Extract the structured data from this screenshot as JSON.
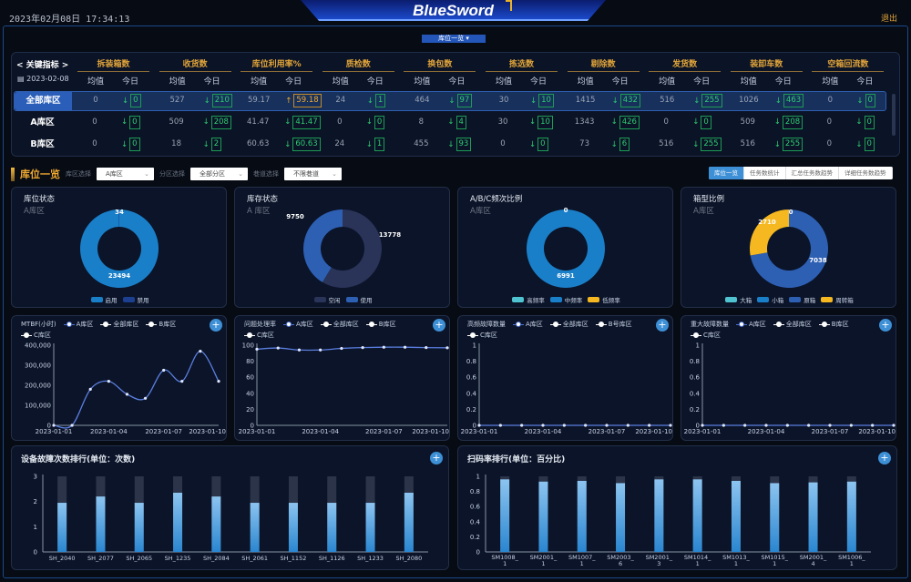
{
  "header": {
    "datetime": "2023年02月08日 17:34:13",
    "logo": "BlueSword",
    "logout": "退出",
    "view_select": "库位一览 ▾"
  },
  "kpi": {
    "title": "< 关键指标 >",
    "date": "▤ 2023-02-08",
    "avg_label": "均值",
    "today_label": "今日",
    "metrics": [
      "拆装箱数",
      "收货数",
      "库位利用率%",
      "质检数",
      "换包数",
      "拣选数",
      "剔除数",
      "发货数",
      "装卸车数",
      "空箱回流数"
    ],
    "rows": [
      {
        "name": "全部库区",
        "selected": true,
        "cells": [
          [
            "0",
            "0",
            "down"
          ],
          [
            "527",
            "210",
            "down"
          ],
          [
            "59.17",
            "59.18",
            "up"
          ],
          [
            "24",
            "1",
            "down"
          ],
          [
            "464",
            "97",
            "down"
          ],
          [
            "30",
            "10",
            "down"
          ],
          [
            "1415",
            "432",
            "down"
          ],
          [
            "516",
            "255",
            "down"
          ],
          [
            "1026",
            "463",
            "down"
          ],
          [
            "0",
            "0",
            "down"
          ]
        ]
      },
      {
        "name": "A库区",
        "selected": false,
        "cells": [
          [
            "0",
            "0",
            "down"
          ],
          [
            "509",
            "208",
            "down"
          ],
          [
            "41.47",
            "41.47",
            "down"
          ],
          [
            "0",
            "0",
            "down"
          ],
          [
            "8",
            "4",
            "down"
          ],
          [
            "30",
            "10",
            "down"
          ],
          [
            "1343",
            "426",
            "down"
          ],
          [
            "0",
            "0",
            "down"
          ],
          [
            "509",
            "208",
            "down"
          ],
          [
            "0",
            "0",
            "down"
          ]
        ]
      },
      {
        "name": "B库区",
        "selected": false,
        "cells": [
          [
            "0",
            "0",
            "down"
          ],
          [
            "18",
            "2",
            "down"
          ],
          [
            "60.63",
            "60.63",
            "down"
          ],
          [
            "24",
            "1",
            "down"
          ],
          [
            "455",
            "93",
            "down"
          ],
          [
            "0",
            "0",
            "down"
          ],
          [
            "73",
            "6",
            "down"
          ],
          [
            "516",
            "255",
            "down"
          ],
          [
            "516",
            "255",
            "down"
          ],
          [
            "0",
            "0",
            "down"
          ]
        ]
      }
    ]
  },
  "section": {
    "title": "库位一览",
    "zone_label": "库区选择",
    "zone_value": "A库区",
    "sub_label": "分区选择",
    "sub_value": "全部分区",
    "lane_label": "巷道选择",
    "lane_value": "不限巷道",
    "tabs": [
      {
        "label": "库位一览",
        "active": true
      },
      {
        "label": "任务数统计",
        "active": false
      },
      {
        "label": "汇总任务数趋势",
        "active": false
      },
      {
        "label": "详细任务数趋势",
        "active": false
      }
    ]
  },
  "colors": {
    "accent": "#3d8fd6",
    "gold": "#f0a830",
    "up": "#f0a830",
    "down": "#2ecc71"
  },
  "chart_data": [
    {
      "type": "pie",
      "donut": true,
      "title": "库位状态",
      "subtitle": "A库区",
      "slices": [
        {
          "name": "启用",
          "value": 23494,
          "color": "#1a7fc9"
        },
        {
          "name": "禁用",
          "value": 34,
          "color": "#1c3f8f"
        }
      ]
    },
    {
      "type": "pie",
      "donut": true,
      "title": "库存状态",
      "subtitle": "A 库区",
      "slices": [
        {
          "name": "空闲",
          "value": 13778,
          "color": "#2a3358"
        },
        {
          "name": "使用",
          "value": 9750,
          "color": "#2d5fb3"
        }
      ]
    },
    {
      "type": "pie",
      "donut": true,
      "title": "A/B/C频次比例",
      "subtitle": "A库区",
      "slices": [
        {
          "name": "高频率",
          "value": 0,
          "color": "#4fc3d0"
        },
        {
          "name": "中频率",
          "value": 6991,
          "color": "#1a7fc9"
        },
        {
          "name": "低频率",
          "value": 0,
          "color": "#f5b820"
        }
      ]
    },
    {
      "type": "pie",
      "donut": true,
      "title": "箱型比例",
      "subtitle": "A库区",
      "slices": [
        {
          "name": "大箱",
          "value": 0,
          "color": "#4fc3d0"
        },
        {
          "name": "小箱",
          "value": 0,
          "color": "#1a7fc9"
        },
        {
          "name": "原箱",
          "value": 7038,
          "color": "#2d5fb3"
        },
        {
          "name": "周转箱",
          "value": 2710,
          "color": "#f5b820"
        }
      ]
    },
    {
      "type": "line",
      "ylabel": "MTBF(小时)",
      "legend": [
        "A库区",
        "全部库区",
        "B库区",
        "C库区"
      ],
      "x": [
        "2023-01-01",
        "2023-01-02",
        "2023-01-03",
        "2023-01-04",
        "2023-01-05",
        "2023-01-06",
        "2023-01-07",
        "2023-01-08",
        "2023-01-09",
        "2023-01-10"
      ],
      "xticks": [
        "2023-01-01",
        "2023-01-04",
        "2023-01-07",
        "2023-01-10"
      ],
      "series": [
        {
          "name": "A库区",
          "values": [
            0,
            0,
            180000,
            220000,
            155000,
            135000,
            275000,
            220000,
            370000,
            220000
          ]
        }
      ],
      "ylim": [
        0,
        400000
      ],
      "yticks": [
        "0",
        "100,000",
        "200,000",
        "300,000",
        "400,000"
      ]
    },
    {
      "type": "line",
      "ylabel": "问题处理率",
      "legend": [
        "A库区",
        "全部库区",
        "B库区",
        "C库区"
      ],
      "x": [
        "2023-01-01",
        "2023-01-02",
        "2023-01-03",
        "2023-01-04",
        "2023-01-05",
        "2023-01-06",
        "2023-01-07",
        "2023-01-08",
        "2023-01-09",
        "2023-01-10"
      ],
      "xticks": [
        "2023-01-01",
        "2023-01-04",
        "2023-01-07",
        "2023-01-10"
      ],
      "series": [
        {
          "name": "A库区",
          "values": [
            95,
            96.5,
            94,
            94,
            96,
            97,
            97.5,
            97.5,
            97,
            96.8
          ]
        }
      ],
      "ylim": [
        0,
        100
      ],
      "yticks": [
        "0",
        "20",
        "40",
        "60",
        "80",
        "100"
      ]
    },
    {
      "type": "line",
      "ylabel": "高频故障数量",
      "legend": [
        "A库区",
        "全部库区",
        "B号库区",
        "C库区"
      ],
      "x": [
        "2023-01-01",
        "2023-01-02",
        "2023-01-03",
        "2023-01-04",
        "2023-01-05",
        "2023-01-06",
        "2023-01-07",
        "2023-01-08",
        "2023-01-09",
        "2023-01-10"
      ],
      "xticks": [
        "2023-01-01",
        "2023-01-04",
        "2023-01-07",
        "2023-01-10"
      ],
      "series": [
        {
          "name": "A库区",
          "values": [
            0,
            0,
            0,
            0,
            0,
            0,
            0,
            0,
            0,
            0
          ]
        }
      ],
      "ylim": [
        0,
        1
      ],
      "yticks": [
        "0",
        "0.2",
        "0.4",
        "0.6",
        "0.8",
        "1"
      ]
    },
    {
      "type": "line",
      "ylabel": "重大故障数量",
      "legend": [
        "A库区",
        "全部库区",
        "B库区",
        "C库区"
      ],
      "x": [
        "2023-01-01",
        "2023-01-02",
        "2023-01-03",
        "2023-01-04",
        "2023-01-05",
        "2023-01-06",
        "2023-01-07",
        "2023-01-08",
        "2023-01-09",
        "2023-01-10"
      ],
      "xticks": [
        "2023-01-01",
        "2023-01-04",
        "2023-01-07",
        "2023-01-10"
      ],
      "series": [
        {
          "name": "A库区",
          "values": [
            0,
            0,
            0,
            0,
            0,
            0,
            0,
            0,
            0,
            0
          ]
        }
      ],
      "ylim": [
        0,
        1
      ],
      "yticks": [
        "0",
        "0.2",
        "0.4",
        "0.6",
        "0.8",
        "1"
      ]
    },
    {
      "type": "bar",
      "title": "设备故障次数排行(单位：次数)",
      "categories": [
        "SH_2040",
        "SH_2077",
        "SH_2065",
        "SH_1235",
        "SH_2084",
        "SH_2061",
        "SH_1152",
        "SH_1126",
        "SH_1233",
        "SH_2080"
      ],
      "values": [
        1.95,
        2.2,
        1.95,
        2.35,
        2.2,
        1.95,
        1.95,
        1.95,
        1.95,
        2.35
      ],
      "ylim": [
        0,
        3
      ],
      "yticks": [
        "0",
        "1",
        "2",
        "3"
      ]
    },
    {
      "type": "bar",
      "title": "扫码率排行(单位：百分比)",
      "categories": [
        "SM1008_1",
        "SM2001_1",
        "SM1007_1",
        "SM2003_6",
        "SM2001_3",
        "SM1014_1",
        "SM1013_1",
        "SM1015_1",
        "SM2001_4",
        "SM1006_1"
      ],
      "values": [
        0.96,
        0.93,
        0.94,
        0.91,
        0.96,
        0.96,
        0.94,
        0.91,
        0.92,
        0.93
      ],
      "ylim": [
        0,
        1
      ],
      "yticks": [
        "0",
        "0.2",
        "0.4",
        "0.6",
        "0.8",
        "1"
      ]
    }
  ]
}
